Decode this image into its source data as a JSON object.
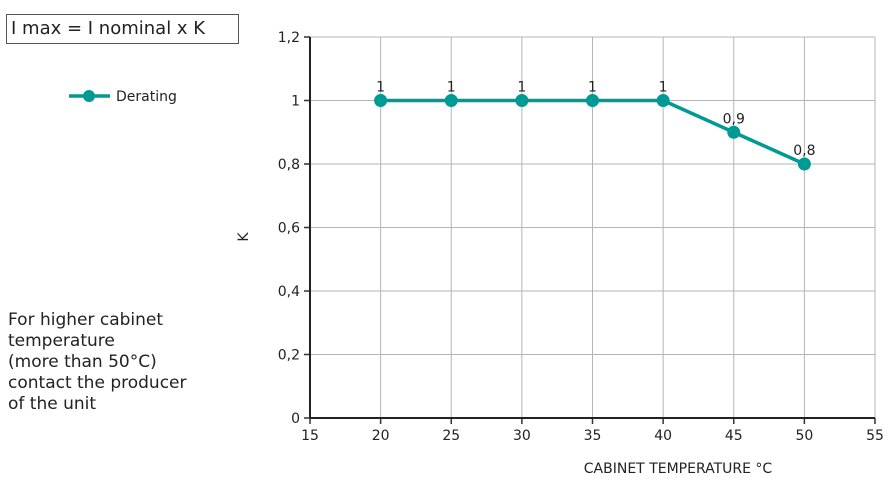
{
  "formula": "I max = I nominal x K",
  "note": "For higher cabinet\ntemperature\n(more than 50°C)\ncontact the producer\nof the unit",
  "chart_data": {
    "type": "line",
    "xlabel": "CABINET TEMPERATURE °C",
    "ylabel": "K",
    "xlim": [
      15,
      55
    ],
    "ylim": [
      0,
      1.2
    ],
    "x_ticks": [
      "15",
      "20",
      "25",
      "30",
      "35",
      "40",
      "45",
      "50",
      "55"
    ],
    "y_ticks": [
      "0",
      "0,2",
      "0,4",
      "0,6",
      "0,8",
      "1",
      "1,2"
    ],
    "grid": true,
    "legend_position": "top-left",
    "series": [
      {
        "name": "Derating",
        "color": "#009a94",
        "x": [
          20,
          25,
          30,
          35,
          40,
          45,
          50
        ],
        "values": [
          1,
          1,
          1,
          1,
          1,
          0.9,
          0.8
        ],
        "labels": [
          "1",
          "1",
          "1",
          "1",
          "1",
          "0,9",
          "0,8"
        ]
      }
    ]
  }
}
